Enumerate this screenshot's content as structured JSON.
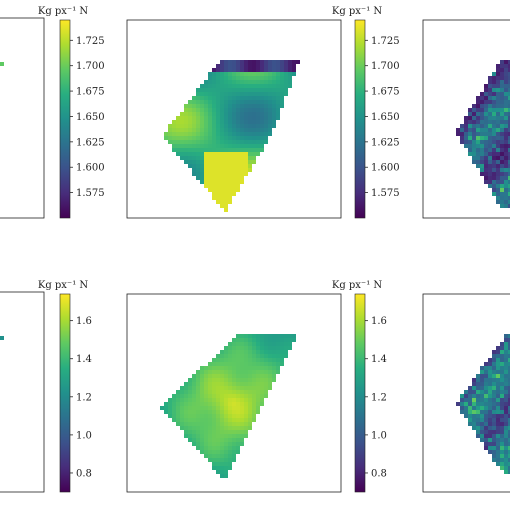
{
  "chart_data": [
    {
      "type": "heatmap",
      "row": "top",
      "colorbar": {
        "label": "Kg px⁻¹ N",
        "colormap": "viridis",
        "range": [
          1.55,
          1.745
        ],
        "ticks": [
          "1.725",
          "1.700",
          "1.675",
          "1.650",
          "1.625",
          "1.600",
          "1.575"
        ],
        "tick_values": [
          1.725,
          1.7,
          1.675,
          1.65,
          1.625,
          1.6,
          1.575
        ]
      }
    },
    {
      "type": "heatmap",
      "row": "bottom",
      "colorbar": {
        "label": "Kg px⁻¹ N",
        "colormap": "viridis",
        "range": [
          0.7,
          1.74
        ],
        "ticks": [
          "1.6",
          "1.4",
          "1.2",
          "1.0",
          "0.8"
        ],
        "tick_values": [
          1.6,
          1.4,
          1.2,
          1.0,
          0.8
        ]
      }
    }
  ]
}
